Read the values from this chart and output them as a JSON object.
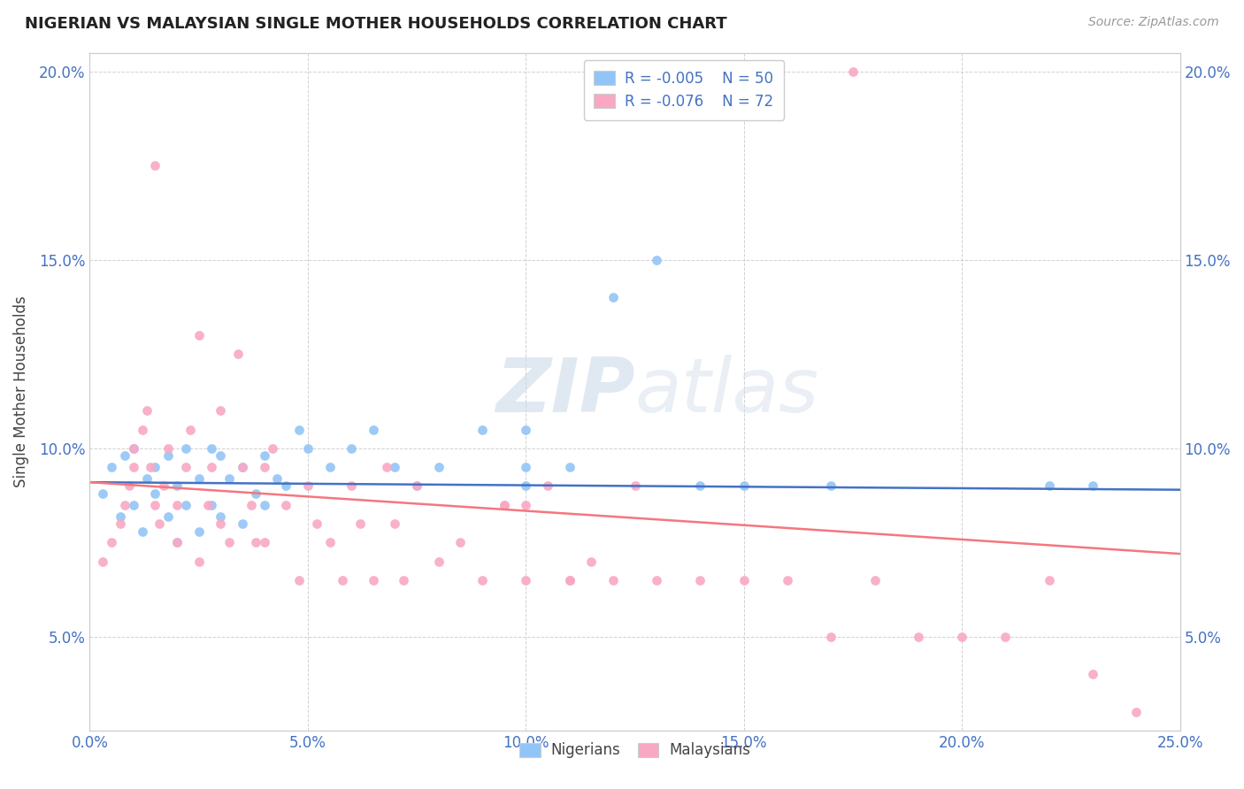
{
  "title": "NIGERIAN VS MALAYSIAN SINGLE MOTHER HOUSEHOLDS CORRELATION CHART",
  "source": "Source: ZipAtlas.com",
  "ylabel": "Single Mother Households",
  "xlim": [
    0.0,
    0.25
  ],
  "ylim": [
    0.025,
    0.205
  ],
  "xticks": [
    0.0,
    0.05,
    0.1,
    0.15,
    0.2,
    0.25
  ],
  "yticks": [
    0.05,
    0.1,
    0.15,
    0.2
  ],
  "legend_R_nigeria": "-0.005",
  "legend_N_nigeria": "50",
  "legend_R_malaysia": "-0.076",
  "legend_N_malaysia": "72",
  "nigeria_color": "#92c5f7",
  "malaysia_color": "#f9a8c4",
  "nigeria_line_color": "#4472C4",
  "malaysia_line_color": "#F4777F",
  "tick_color": "#4472C4",
  "text_color": "#444444",
  "grid_color": "#cccccc",
  "watermark_color": "#e0e8f0",
  "nigeria_x": [
    0.003,
    0.005,
    0.007,
    0.008,
    0.01,
    0.01,
    0.012,
    0.013,
    0.015,
    0.015,
    0.018,
    0.018,
    0.02,
    0.02,
    0.022,
    0.022,
    0.025,
    0.025,
    0.028,
    0.028,
    0.03,
    0.03,
    0.032,
    0.035,
    0.035,
    0.038,
    0.04,
    0.04,
    0.043,
    0.045,
    0.048,
    0.05,
    0.055,
    0.06,
    0.065,
    0.07,
    0.075,
    0.08,
    0.09,
    0.1,
    0.1,
    0.11,
    0.12,
    0.13,
    0.14,
    0.15,
    0.17,
    0.22,
    0.23,
    0.1
  ],
  "nigeria_y": [
    0.088,
    0.095,
    0.082,
    0.098,
    0.085,
    0.1,
    0.078,
    0.092,
    0.088,
    0.095,
    0.082,
    0.098,
    0.075,
    0.09,
    0.085,
    0.1,
    0.078,
    0.092,
    0.085,
    0.1,
    0.082,
    0.098,
    0.092,
    0.08,
    0.095,
    0.088,
    0.085,
    0.098,
    0.092,
    0.09,
    0.105,
    0.1,
    0.095,
    0.1,
    0.105,
    0.095,
    0.09,
    0.095,
    0.105,
    0.09,
    0.095,
    0.095,
    0.14,
    0.15,
    0.09,
    0.09,
    0.09,
    0.09,
    0.09,
    0.105
  ],
  "malaysia_x": [
    0.003,
    0.005,
    0.007,
    0.008,
    0.009,
    0.01,
    0.01,
    0.012,
    0.013,
    0.014,
    0.015,
    0.015,
    0.016,
    0.017,
    0.018,
    0.02,
    0.02,
    0.022,
    0.023,
    0.025,
    0.025,
    0.027,
    0.028,
    0.03,
    0.03,
    0.032,
    0.034,
    0.035,
    0.037,
    0.038,
    0.04,
    0.04,
    0.042,
    0.045,
    0.048,
    0.05,
    0.052,
    0.055,
    0.058,
    0.06,
    0.062,
    0.065,
    0.068,
    0.07,
    0.072,
    0.075,
    0.08,
    0.085,
    0.09,
    0.095,
    0.1,
    0.105,
    0.11,
    0.115,
    0.12,
    0.125,
    0.13,
    0.14,
    0.15,
    0.16,
    0.17,
    0.18,
    0.19,
    0.2,
    0.21,
    0.22,
    0.23,
    0.24,
    0.095,
    0.1,
    0.11,
    0.175
  ],
  "malaysia_y": [
    0.07,
    0.075,
    0.08,
    0.085,
    0.09,
    0.095,
    0.1,
    0.105,
    0.11,
    0.095,
    0.085,
    0.175,
    0.08,
    0.09,
    0.1,
    0.075,
    0.085,
    0.095,
    0.105,
    0.07,
    0.13,
    0.085,
    0.095,
    0.08,
    0.11,
    0.075,
    0.125,
    0.095,
    0.085,
    0.075,
    0.075,
    0.095,
    0.1,
    0.085,
    0.065,
    0.09,
    0.08,
    0.075,
    0.065,
    0.09,
    0.08,
    0.065,
    0.095,
    0.08,
    0.065,
    0.09,
    0.07,
    0.075,
    0.065,
    0.085,
    0.065,
    0.09,
    0.065,
    0.07,
    0.065,
    0.09,
    0.065,
    0.065,
    0.065,
    0.065,
    0.05,
    0.065,
    0.05,
    0.05,
    0.05,
    0.065,
    0.04,
    0.03,
    0.085,
    0.085,
    0.065,
    0.2
  ]
}
